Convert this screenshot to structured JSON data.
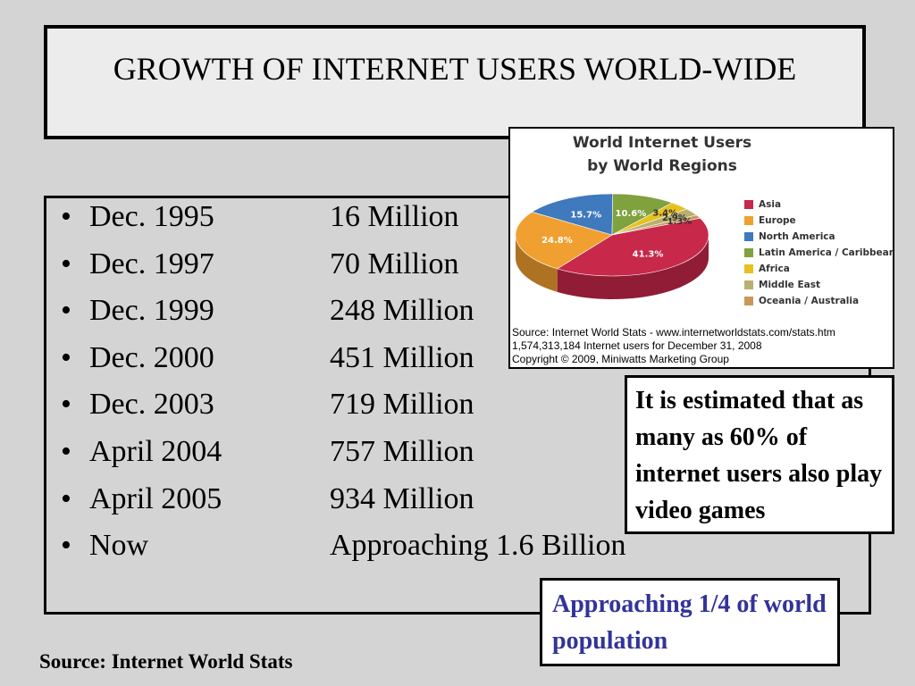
{
  "slide": {
    "title": "GROWTH OF INTERNET USERS WORLD-WIDE",
    "bullet_symbol": "•",
    "timeline": [
      {
        "date": "Dec. 1995",
        "users": "16 Million"
      },
      {
        "date": "Dec. 1997",
        "users": "70 Million"
      },
      {
        "date": "Dec. 1999",
        "users": "248 Million"
      },
      {
        "date": "Dec. 2000",
        "users": "451 Million"
      },
      {
        "date": "Dec. 2003",
        "users": "719 Million"
      },
      {
        "date": "April 2004",
        "users": "757 Million"
      },
      {
        "date": "April 2005",
        "users": "934 Million"
      },
      {
        "date": "Now",
        "users": "Approaching 1.6 Billion"
      }
    ],
    "note": "It is estimated that as many as 60% of internet users also play video games",
    "population_note": "Approaching 1/4 of world population",
    "footer_source": "Source: Internet World Stats"
  },
  "chart_data": {
    "type": "pie",
    "title": "World Internet Users",
    "subtitle": "by World Regions",
    "slices": [
      {
        "name": "Asia",
        "value": 41.3,
        "label": "41.3%",
        "color": "#c8284a"
      },
      {
        "name": "Europe",
        "value": 24.8,
        "label": "24.8%",
        "color": "#f0a030"
      },
      {
        "name": "North America",
        "value": 15.7,
        "label": "15.7%",
        "color": "#3f79be"
      },
      {
        "name": "Latin America / Caribbean",
        "value": 10.6,
        "label": "10.6%",
        "color": "#7fa23e"
      },
      {
        "name": "Africa",
        "value": 3.4,
        "label": "3.4%",
        "color": "#e8c020"
      },
      {
        "name": "Middle East",
        "value": 2.9,
        "label": "2.9%",
        "color": "#b8b070"
      },
      {
        "name": "Oceania / Australia",
        "value": 1.3,
        "label": "1.3%",
        "color": "#c89858"
      }
    ],
    "legend_placement": "right",
    "source_lines": [
      "Source: Internet World Stats -  www.internetworldstats.com/stats.htm",
      "1,574,313,184 Internet users for December 31, 2008",
      "Copyright © 2009, Miniwatts Marketing Group"
    ]
  }
}
